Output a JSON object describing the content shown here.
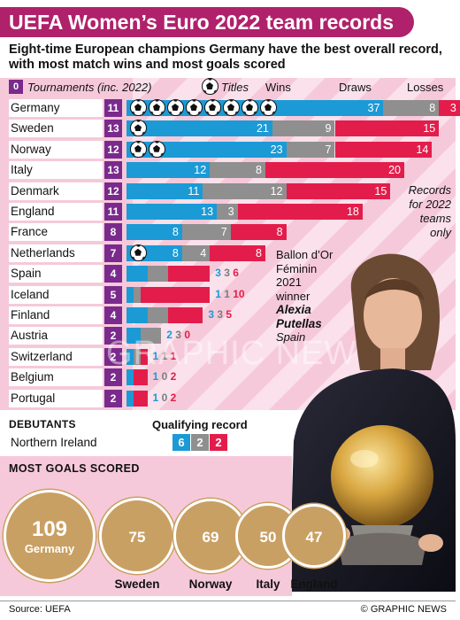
{
  "title": "UEFA Women’s Euro 2022 team records",
  "subtitle": "Eight-time European champions Germany have the best overall record, with most match wins and most goals scored",
  "header": {
    "badge": "0",
    "tournaments": "Tournaments (inc. 2022)",
    "titles": "Titles",
    "wins": "Wins",
    "draws": "Draws",
    "losses": "Losses"
  },
  "colors": {
    "wins": "#1b9ad6",
    "draws": "#8f8f8f",
    "losses": "#e31d4b",
    "tournaments": "#7a2a8c",
    "title_bar": "#b0216b",
    "bubble": "#c9a063"
  },
  "chart_data": {
    "type": "bar",
    "stacked": true,
    "title": "UEFA Women’s Euro 2022 team records",
    "categories": [
      "Germany",
      "Sweden",
      "Norway",
      "Italy",
      "Denmark",
      "England",
      "France",
      "Netherlands",
      "Spain",
      "Iceland",
      "Finland",
      "Austria",
      "Switzerland",
      "Belgium",
      "Portugal"
    ],
    "tournaments": [
      11,
      13,
      12,
      13,
      12,
      11,
      8,
      7,
      4,
      5,
      4,
      2,
      2,
      2,
      2
    ],
    "titles": [
      8,
      1,
      2,
      0,
      0,
      0,
      0,
      1,
      0,
      0,
      0,
      0,
      0,
      0,
      0
    ],
    "series": [
      {
        "name": "Wins",
        "values": [
          37,
          21,
          23,
          12,
          11,
          13,
          8,
          8,
          3,
          1,
          3,
          2,
          1,
          1,
          1
        ]
      },
      {
        "name": "Draws",
        "values": [
          8,
          9,
          7,
          8,
          12,
          3,
          7,
          4,
          3,
          1,
          3,
          3,
          1,
          0,
          0
        ]
      },
      {
        "name": "Losses",
        "values": [
          3,
          15,
          14,
          20,
          15,
          18,
          8,
          8,
          6,
          10,
          5,
          0,
          1,
          2,
          2
        ]
      }
    ]
  },
  "note": "Records for 2022 teams only",
  "ballon": {
    "line1": "Ballon d’Or",
    "line2": "Féminin",
    "line3": "2021",
    "line4": "winner",
    "name1": "Alexia",
    "name2": "Putellas",
    "country": "Spain"
  },
  "debutants": {
    "label": "Debutants",
    "qual_label": "Qualifying record",
    "team": "Northern Ireland",
    "wins": "6",
    "draws": "2",
    "losses": "2"
  },
  "goals": {
    "label": "Most Goals Scored",
    "teams": [
      {
        "name": "Germany",
        "goals": 109
      },
      {
        "name": "Sweden",
        "goals": 75
      },
      {
        "name": "Norway",
        "goals": 69
      },
      {
        "name": "Italy",
        "goals": 50
      },
      {
        "name": "England",
        "goals": 47
      }
    ]
  },
  "footer": {
    "source": "Source: UEFA",
    "credit": "© GRAPHIC NEWS"
  },
  "watermark": "GRAPHIC NEWS"
}
